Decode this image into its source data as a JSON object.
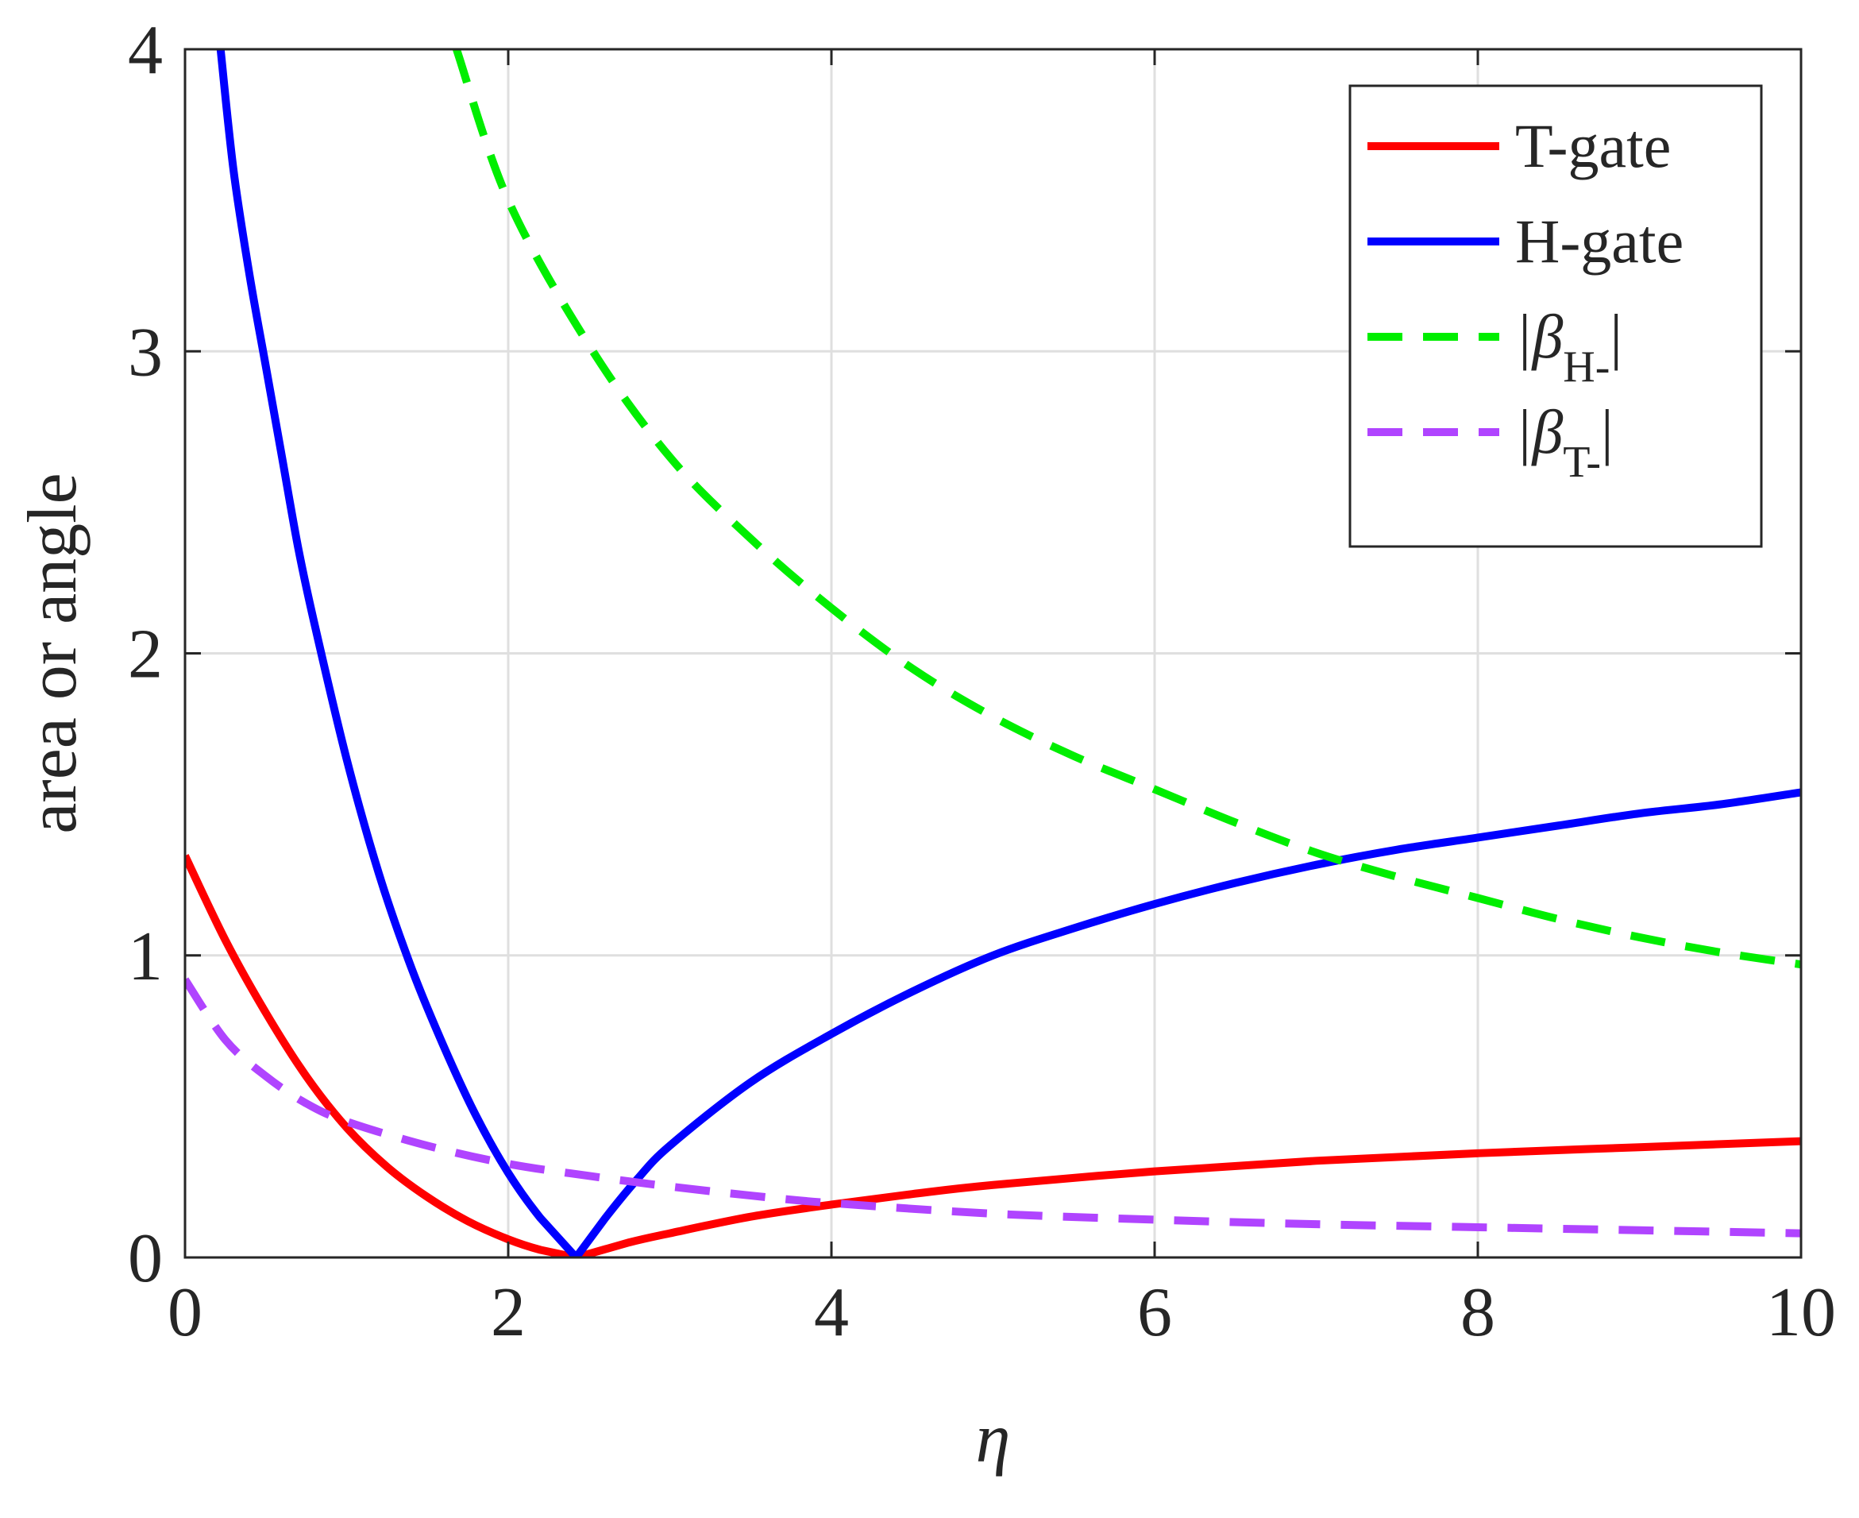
{
  "chart_data": {
    "type": "line",
    "title": "",
    "xlabel": "η",
    "ylabel": "area or angle",
    "xlim": [
      0,
      10
    ],
    "ylim": [
      0,
      4
    ],
    "xticks": [
      0,
      2,
      4,
      6,
      8,
      10
    ],
    "yticks": [
      0,
      1,
      2,
      3,
      4
    ],
    "xtick_labels": [
      "0",
      "2",
      "4",
      "6",
      "8",
      "10"
    ],
    "ytick_labels": [
      "0",
      "1",
      "2",
      "3",
      "4"
    ],
    "grid": true,
    "legend_position": "top-right",
    "series": [
      {
        "name": "T-gate",
        "color": "#ff0000",
        "style": "solid",
        "x": [
          0,
          0.25,
          0.5,
          0.75,
          1.0,
          1.25,
          1.5,
          1.75,
          2.0,
          2.2,
          2.42,
          2.75,
          3.0,
          3.5,
          4.0,
          4.5,
          5.0,
          6.0,
          7.0,
          8.0,
          9.0,
          10.0
        ],
        "y": [
          1.33,
          1.05,
          0.81,
          0.6,
          0.43,
          0.3,
          0.2,
          0.12,
          0.06,
          0.025,
          0.0,
          0.05,
          0.08,
          0.135,
          0.175,
          0.21,
          0.24,
          0.285,
          0.32,
          0.345,
          0.365,
          0.385
        ]
      },
      {
        "name": "H-gate",
        "color": "#0000ff",
        "style": "solid",
        "x": [
          0.22,
          0.3,
          0.4,
          0.5,
          0.6,
          0.7,
          0.8,
          1.0,
          1.2,
          1.4,
          1.6,
          1.8,
          2.0,
          2.2,
          2.42,
          2.6,
          2.8,
          3.0,
          3.5,
          4.0,
          4.5,
          5.0,
          5.5,
          6.0,
          6.5,
          7.0,
          7.5,
          8.0,
          8.5,
          9.0,
          9.5,
          10.0
        ],
        "y": [
          4.0,
          3.6,
          3.25,
          2.95,
          2.65,
          2.35,
          2.1,
          1.65,
          1.27,
          0.96,
          0.7,
          0.47,
          0.28,
          0.13,
          0.0,
          0.13,
          0.26,
          0.37,
          0.58,
          0.74,
          0.88,
          1.0,
          1.09,
          1.17,
          1.24,
          1.3,
          1.35,
          1.39,
          1.43,
          1.47,
          1.5,
          1.54
        ]
      },
      {
        "name": "|β_H-|",
        "color": "#00ee00",
        "style": "dashed",
        "x": [
          1.68,
          2.0,
          2.5,
          3.0,
          3.5,
          4.0,
          4.5,
          5.0,
          5.5,
          6.0,
          6.5,
          7.0,
          7.5,
          8.0,
          8.5,
          9.0,
          9.5,
          10.0
        ],
        "y": [
          4.0,
          3.5,
          3.02,
          2.65,
          2.38,
          2.15,
          1.95,
          1.79,
          1.66,
          1.55,
          1.44,
          1.34,
          1.26,
          1.19,
          1.12,
          1.06,
          1.01,
          0.97
        ]
      },
      {
        "name": "|β_T-|",
        "color": "#b044ff",
        "style": "dashed",
        "x": [
          0,
          0.25,
          0.5,
          0.75,
          1.0,
          1.5,
          2.0,
          2.5,
          3.0,
          3.5,
          4.0,
          5.0,
          6.0,
          7.0,
          8.0,
          9.0,
          10.0
        ],
        "y": [
          0.92,
          0.72,
          0.6,
          0.51,
          0.45,
          0.37,
          0.31,
          0.27,
          0.235,
          0.205,
          0.18,
          0.145,
          0.125,
          0.11,
          0.1,
          0.09,
          0.08
        ]
      }
    ]
  },
  "legend": {
    "items": [
      {
        "main": "T-gate",
        "sub": ""
      },
      {
        "main": "H-gate",
        "sub": ""
      },
      {
        "main": "|β",
        "sub": "H-",
        "tail": "|"
      },
      {
        "main": "|β",
        "sub": "T-",
        "tail": "|"
      }
    ]
  }
}
